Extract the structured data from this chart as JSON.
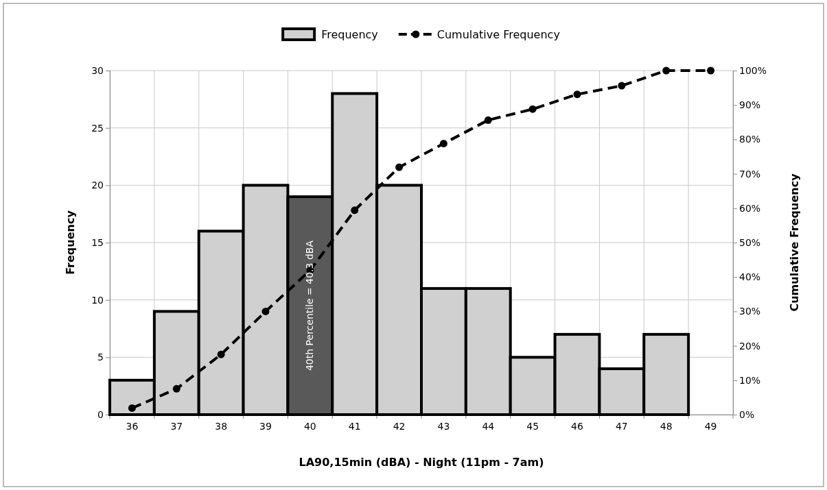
{
  "chart_data": {
    "type": "bar",
    "categories": [
      "36",
      "37",
      "38",
      "39",
      "40",
      "41",
      "42",
      "43",
      "44",
      "45",
      "46",
      "47",
      "48",
      "49"
    ],
    "series": [
      {
        "name": "Frequency",
        "color": "#d0d0d0",
        "colors": [
          "#d0d0d0",
          "#d0d0d0",
          "#d0d0d0",
          "#d0d0d0",
          "#595959",
          "#d0d0d0",
          "#d0d0d0",
          "#d0d0d0",
          "#d0d0d0",
          "#d0d0d0",
          "#d0d0d0",
          "#d0d0d0",
          "#d0d0d0",
          null
        ],
        "values": [
          3,
          9,
          16,
          20,
          19,
          28,
          20,
          11,
          11,
          5,
          7,
          4,
          7,
          null
        ]
      },
      {
        "name": "Cumulative Frequency",
        "type": "line",
        "axis": "y2",
        "color": "#000000",
        "marker": "circle",
        "line_style": "dashed",
        "values": [
          1.9,
          7.5,
          17.5,
          30,
          41.9,
          59.4,
          71.9,
          78.8,
          85.6,
          88.8,
          93.1,
          95.6,
          100,
          100
        ]
      }
    ],
    "xlabel": "LA90,15min (dBA) - Night (11pm - 7am)",
    "ylabel": "Frequency",
    "y2label": "Cumulative Frequency",
    "ylim": [
      0,
      30
    ],
    "yticks": [
      0,
      5,
      10,
      15,
      20,
      25,
      30
    ],
    "y2lim": [
      0,
      100
    ],
    "y2ticks": [
      {
        "value": 0,
        "label": "0%"
      },
      {
        "value": 10,
        "label": "10%"
      },
      {
        "value": 20,
        "label": "20%"
      },
      {
        "value": 30,
        "label": "30%"
      },
      {
        "value": 40,
        "label": "40%"
      },
      {
        "value": 50,
        "label": "50%"
      },
      {
        "value": 60,
        "label": "60%"
      },
      {
        "value": 70,
        "label": "70%"
      },
      {
        "value": 80,
        "label": "80%"
      },
      {
        "value": 90,
        "label": "90%"
      },
      {
        "value": 100,
        "label": "100%"
      }
    ],
    "annotations": [
      "40th Percentile = 40.3 dBA"
    ],
    "grid": true,
    "legend": "top"
  }
}
